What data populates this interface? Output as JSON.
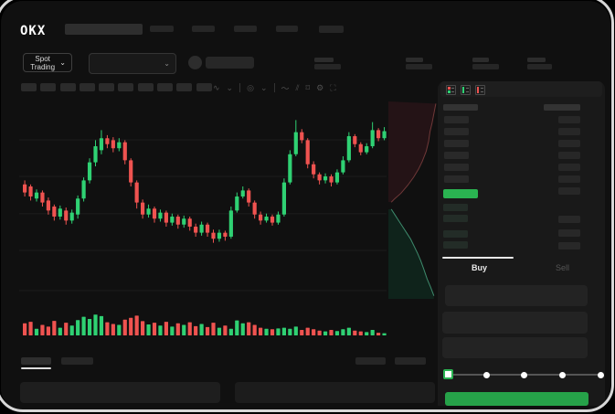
{
  "brand": {
    "logo_text": "OKX"
  },
  "toolbar": {
    "spot_trading_label": "Spot Trading",
    "chevron_glyph": "⌄"
  },
  "chart_toolbar_icons": [
    {
      "name": "interval-icon",
      "glyph": "∿"
    },
    {
      "name": "chevron-down-icon",
      "glyph": "⌄"
    },
    {
      "name": "sep",
      "glyph": ""
    },
    {
      "name": "indicators-icon",
      "glyph": "◎"
    },
    {
      "name": "chevron-down-icon",
      "glyph": "⌄"
    },
    {
      "name": "sep",
      "glyph": ""
    },
    {
      "name": "line-tool-icon",
      "glyph": "〜"
    },
    {
      "name": "draw-tool-icon",
      "glyph": "⫽"
    },
    {
      "name": "camera-icon",
      "glyph": "⌑"
    },
    {
      "name": "settings-icon",
      "glyph": "⚙"
    },
    {
      "name": "fullscreen-icon",
      "glyph": "⛶"
    }
  ],
  "order_panel": {
    "tabs": {
      "buy": "Buy",
      "sell": "Sell"
    },
    "book": {
      "rows_left_above": 6,
      "rows_right_above": 7,
      "rows_left_below": 4,
      "rows_right_below": 3
    },
    "slider_steps": 5,
    "slider_value_index": 0
  },
  "colors": {
    "up": "#2fd173",
    "down": "#ef5350",
    "accent_green": "#2ab351",
    "button_green": "#26a249",
    "grid": "#1d1d1d",
    "depth_ask_fill": "#241316",
    "depth_ask_line": "#703838",
    "depth_bid_fill": "#0f231b",
    "depth_bid_line": "#3e8b6d"
  },
  "chart_data": [
    {
      "type": "candlestick",
      "title": "",
      "axis_labels_visible": false,
      "price_scale": [
        0,
        100
      ],
      "gridlines_v": [
        83.2,
        65,
        46.4,
        28.2,
        8.2
      ],
      "candles": [
        [
          61,
          63,
          55,
          57
        ],
        [
          60,
          61,
          53,
          55
        ],
        [
          54,
          58.5,
          52.5,
          57
        ],
        [
          57,
          58,
          50,
          52
        ],
        [
          53,
          54.5,
          46,
          48
        ],
        [
          50,
          51,
          43,
          45
        ],
        [
          45,
          50.5,
          43.5,
          49
        ],
        [
          48,
          49.5,
          41,
          43
        ],
        [
          43,
          48.5,
          41.5,
          47
        ],
        [
          46,
          55.5,
          44,
          54
        ],
        [
          54,
          64.5,
          52.5,
          63
        ],
        [
          63,
          74,
          61.5,
          72
        ],
        [
          72,
          83,
          70,
          80
        ],
        [
          78,
          88,
          76,
          84
        ],
        [
          84,
          85.5,
          79,
          81
        ],
        [
          83,
          84.5,
          77,
          79
        ],
        [
          79,
          84,
          77.5,
          82
        ],
        [
          82,
          83,
          71,
          73
        ],
        [
          73,
          74,
          60,
          62
        ],
        [
          62,
          63,
          49,
          52
        ],
        [
          52,
          53.5,
          44,
          46
        ],
        [
          46,
          51,
          44.5,
          49
        ],
        [
          49,
          50,
          42,
          44
        ],
        [
          44,
          48.5,
          42.5,
          47
        ],
        [
          47,
          48,
          40,
          42
        ],
        [
          42,
          46.5,
          40.5,
          45
        ],
        [
          45,
          46,
          39,
          41
        ],
        [
          41,
          45.5,
          39.5,
          44
        ],
        [
          44,
          45,
          38,
          40
        ],
        [
          40,
          41.5,
          35,
          37
        ],
        [
          37,
          42.5,
          35.5,
          41
        ],
        [
          41,
          42,
          35,
          37
        ],
        [
          37,
          38.5,
          32,
          34
        ],
        [
          34,
          38.5,
          32.5,
          37
        ],
        [
          37,
          38,
          33,
          35
        ],
        [
          35,
          50,
          34,
          48
        ],
        [
          48,
          57,
          47,
          55
        ],
        [
          55,
          60,
          54,
          58
        ],
        [
          58,
          59,
          50,
          52
        ],
        [
          52,
          53,
          44,
          46
        ],
        [
          46,
          47.5,
          41,
          43
        ],
        [
          43,
          46.5,
          42,
          45
        ],
        [
          45,
          46,
          40.5,
          42
        ],
        [
          42,
          47.5,
          41,
          46
        ],
        [
          46,
          64,
          45,
          62
        ],
        [
          62,
          78,
          61,
          76
        ],
        [
          76,
          93,
          75,
          87
        ],
        [
          87,
          88.5,
          81.5,
          83
        ],
        [
          83,
          84,
          69,
          71
        ],
        [
          71,
          72.5,
          64,
          66
        ],
        [
          66,
          67,
          61,
          63
        ],
        [
          63,
          66.5,
          61.5,
          65
        ],
        [
          65,
          66,
          60,
          62
        ],
        [
          62,
          68.5,
          61,
          67
        ],
        [
          67,
          75,
          66,
          73
        ],
        [
          73,
          87,
          72,
          85
        ],
        [
          85,
          86,
          79.5,
          81
        ],
        [
          81,
          82,
          75.5,
          77
        ],
        [
          77,
          81.5,
          76,
          80
        ],
        [
          80,
          92,
          79,
          88
        ],
        [
          88,
          89,
          82.5,
          84
        ],
        [
          84,
          89.5,
          83,
          87.5
        ]
      ]
    },
    {
      "type": "bar",
      "role": "volume",
      "colors_follow_candles": true,
      "values": [
        55,
        62,
        30,
        48,
        40,
        66,
        35,
        58,
        45,
        70,
        85,
        75,
        95,
        88,
        60,
        52,
        48,
        72,
        80,
        90,
        65,
        50,
        58,
        45,
        62,
        40,
        55,
        48,
        60,
        42,
        52,
        38,
        58,
        35,
        45,
        30,
        68,
        55,
        60,
        48,
        35,
        30,
        28,
        32,
        35,
        30,
        40,
        25,
        35,
        28,
        22,
        18,
        25,
        20,
        28,
        35,
        22,
        18,
        15,
        25,
        12,
        10
      ]
    },
    {
      "type": "area",
      "role": "depth",
      "asks_line": [
        [
          0.98,
          0.02
        ],
        [
          0.94,
          0.07
        ],
        [
          0.9,
          0.12
        ],
        [
          0.86,
          0.16
        ],
        [
          0.83,
          0.21
        ],
        [
          0.78,
          0.26
        ],
        [
          0.7,
          0.31
        ],
        [
          0.62,
          0.35
        ],
        [
          0.52,
          0.39
        ],
        [
          0.4,
          0.43
        ],
        [
          0.26,
          0.47
        ],
        [
          0.12,
          0.5
        ],
        [
          0.06,
          0.515
        ]
      ],
      "bids_line": [
        [
          0.06,
          0.55
        ],
        [
          0.14,
          0.58
        ],
        [
          0.22,
          0.61
        ],
        [
          0.3,
          0.64
        ],
        [
          0.38,
          0.67
        ],
        [
          0.46,
          0.7
        ],
        [
          0.54,
          0.74
        ],
        [
          0.6,
          0.77
        ],
        [
          0.67,
          0.81
        ],
        [
          0.73,
          0.85
        ],
        [
          0.8,
          0.9
        ],
        [
          0.87,
          0.94
        ],
        [
          0.94,
          0.985
        ]
      ]
    }
  ]
}
